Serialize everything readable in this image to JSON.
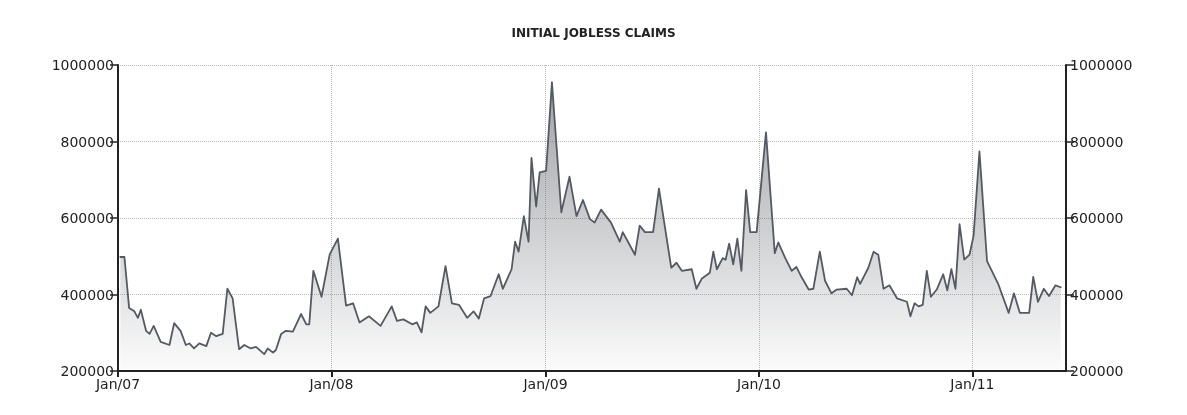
{
  "chart_data": {
    "type": "area",
    "title": "INITIAL JOBLESS CLAIMS",
    "xlim": [
      "2007-01-01",
      "2011-06-10"
    ],
    "xticks": [
      {
        "value": "2007-01-01",
        "label": "Jan/07"
      },
      {
        "value": "2008-01-01",
        "label": "Jan/08"
      },
      {
        "value": "2009-01-01",
        "label": "Jan/09"
      },
      {
        "value": "2010-01-01",
        "label": "Jan/10"
      },
      {
        "value": "2011-01-01",
        "label": "Jan/11"
      }
    ],
    "ylim": [
      200000,
      1000000
    ],
    "yticks": [
      200000,
      400000,
      600000,
      800000,
      1000000
    ],
    "y2lim": [
      200000,
      1000000
    ],
    "y2ticks": [
      200000,
      400000,
      600000,
      800000,
      1000000
    ],
    "grid": true,
    "marker": "none",
    "line_style": "solid",
    "x": [
      "2007-01-05",
      "2007-01-12",
      "2007-01-20",
      "2007-01-29",
      "2007-02-04",
      "2007-02-09",
      "2007-02-18",
      "2007-02-24",
      "2007-03-03",
      "2007-03-15",
      "2007-03-30",
      "2007-04-07",
      "2007-04-18",
      "2007-04-27",
      "2007-05-03",
      "2007-05-11",
      "2007-05-20",
      "2007-06-01",
      "2007-06-09",
      "2007-06-18",
      "2007-06-29",
      "2007-07-07",
      "2007-07-16",
      "2007-07-27",
      "2007-08-05",
      "2007-08-16",
      "2007-08-25",
      "2007-09-08",
      "2007-09-14",
      "2007-09-23",
      "2007-09-28",
      "2007-10-07",
      "2007-10-15",
      "2007-10-27",
      "2007-11-10",
      "2007-11-19",
      "2007-11-24",
      "2007-12-01",
      "2007-12-15",
      "2007-12-29",
      "2008-01-12",
      "2008-01-26",
      "2008-02-07",
      "2008-02-18",
      "2008-03-05",
      "2008-03-25",
      "2008-04-13",
      "2008-04-22",
      "2008-05-03",
      "2008-05-18",
      "2008-05-26",
      "2008-06-03",
      "2008-06-10",
      "2008-06-18",
      "2008-07-02",
      "2008-07-14",
      "2008-07-25",
      "2008-08-06",
      "2008-08-20",
      "2008-08-31",
      "2008-09-09",
      "2008-09-18",
      "2008-09-29",
      "2008-10-13",
      "2008-10-20",
      "2008-11-04",
      "2008-11-10",
      "2008-11-16",
      "2008-11-25",
      "2008-12-03",
      "2008-12-08",
      "2008-12-16",
      "2008-12-22",
      "2009-01-02",
      "2009-01-12",
      "2009-01-28",
      "2009-02-11",
      "2009-02-23",
      "2009-03-06",
      "2009-03-18",
      "2009-03-26",
      "2009-04-06",
      "2009-04-23",
      "2009-05-08",
      "2009-05-13",
      "2009-05-22",
      "2009-06-03",
      "2009-06-11",
      "2009-06-20",
      "2009-07-04",
      "2009-07-14",
      "2009-08-04",
      "2009-08-13",
      "2009-08-22",
      "2009-09-08",
      "2009-09-16",
      "2009-09-25",
      "2009-10-09",
      "2009-10-15",
      "2009-10-21",
      "2009-10-31",
      "2009-11-05",
      "2009-11-11",
      "2009-11-18",
      "2009-11-25",
      "2009-12-02",
      "2009-12-10",
      "2009-12-17",
      "2009-12-28",
      "2010-01-13",
      "2010-01-28",
      "2010-02-03",
      "2010-02-15",
      "2010-02-26",
      "2010-03-06",
      "2010-03-15",
      "2010-03-27",
      "2010-04-04",
      "2010-04-15",
      "2010-04-24",
      "2010-05-05",
      "2010-05-14",
      "2010-05-31",
      "2010-06-09",
      "2010-06-18",
      "2010-06-23",
      "2010-07-07",
      "2010-07-16",
      "2010-07-24",
      "2010-08-02",
      "2010-08-12",
      "2010-08-25",
      "2010-09-11",
      "2010-09-17",
      "2010-09-24",
      "2010-10-01",
      "2010-10-08",
      "2010-10-15",
      "2010-10-22",
      "2010-11-01",
      "2010-11-12",
      "2010-11-19",
      "2010-11-26",
      "2010-12-03",
      "2010-12-10",
      "2010-12-18",
      "2010-12-27",
      "2011-01-03",
      "2011-01-13",
      "2011-01-26",
      "2011-02-14",
      "2011-03-04",
      "2011-03-13",
      "2011-03-23",
      "2011-04-08",
      "2011-04-15",
      "2011-04-23",
      "2011-05-03",
      "2011-05-12",
      "2011-05-23",
      "2011-06-01"
    ],
    "series": [
      {
        "color": "#555a62",
        "values": [
          498000,
          498000,
          365000,
          356000,
          339000,
          360000,
          305000,
          297000,
          318000,
          276000,
          268000,
          325000,
          305000,
          268000,
          272000,
          259000,
          272000,
          265000,
          300000,
          291000,
          297000,
          415000,
          390000,
          257000,
          268000,
          259000,
          263000,
          244000,
          259000,
          248000,
          255000,
          297000,
          305000,
          303000,
          349000,
          322000,
          322000,
          462000,
          394000,
          505000,
          546000,
          371000,
          377000,
          327000,
          343000,
          318000,
          369000,
          331000,
          335000,
          322000,
          327000,
          301000,
          369000,
          352000,
          369000,
          474000,
          377000,
          373000,
          339000,
          356000,
          337000,
          390000,
          396000,
          453000,
          415000,
          466000,
          538000,
          512000,
          605000,
          538000,
          757000,
          630000,
          719000,
          723000,
          955000,
          615000,
          708000,
          605000,
          647000,
          597000,
          588000,
          622000,
          588000,
          538000,
          563000,
          538000,
          504000,
          580000,
          563000,
          563000,
          677000,
          470000,
          483000,
          462000,
          466000,
          415000,
          441000,
          457000,
          512000,
          466000,
          495000,
          491000,
          533000,
          479000,
          546000,
          462000,
          673000,
          563000,
          563000,
          824000,
          508000,
          536000,
          495000,
          462000,
          472000,
          445000,
          413000,
          415000,
          512000,
          436000,
          403000,
          413000,
          415000,
          398000,
          445000,
          428000,
          470000,
          512000,
          504000,
          415000,
          424000,
          390000,
          381000,
          343000,
          377000,
          369000,
          373000,
          462000,
          394000,
          413000,
          453000,
          411000,
          466000,
          415000,
          584000,
          491000,
          504000,
          554000,
          774000,
          487000,
          428000,
          352000,
          403000,
          352000,
          352000,
          446000,
          381000,
          415000,
          396000,
          424000,
          419000
        ]
      }
    ]
  }
}
